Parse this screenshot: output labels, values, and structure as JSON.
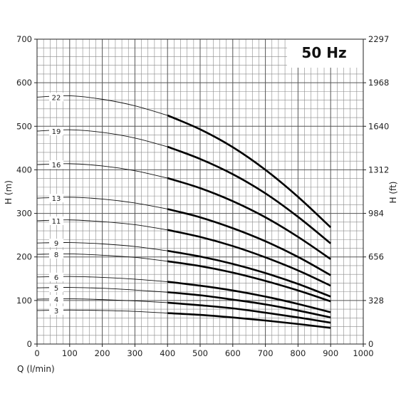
{
  "chart_data": {
    "type": "line",
    "title": "",
    "badge": "50 Hz",
    "xlabel": "Q (l/min)",
    "ylabel": "H (m)",
    "y2label": "H (ft)",
    "xlim": [
      0,
      1000
    ],
    "ylim": [
      0,
      700
    ],
    "x_ticks": [
      "0",
      "100",
      "200",
      "300",
      "400",
      "500",
      "600",
      "700",
      "800",
      "900",
      "1000"
    ],
    "y_ticks": [
      "0",
      "100",
      "200",
      "300",
      "400",
      "500",
      "600",
      "700"
    ],
    "y2_ticks": [
      "0",
      "328",
      "656",
      "984",
      "1312",
      "1640",
      "1968",
      "2297"
    ],
    "grid": true,
    "operating_range": [
      400,
      900
    ],
    "series": [
      {
        "name": "22",
        "x": [
          0,
          100,
          200,
          300,
          400,
          500,
          600,
          700,
          800,
          900
        ],
        "y": [
          567,
          570,
          562,
          547,
          525,
          493,
          452,
          400,
          338,
          268
        ]
      },
      {
        "name": "19",
        "x": [
          0,
          100,
          200,
          300,
          400,
          500,
          600,
          700,
          800,
          900
        ],
        "y": [
          489,
          492,
          486,
          473,
          453,
          425,
          390,
          346,
          292,
          231
        ]
      },
      {
        "name": "16",
        "x": [
          0,
          100,
          200,
          300,
          400,
          500,
          600,
          700,
          800,
          900
        ],
        "y": [
          412,
          414,
          409,
          398,
          381,
          358,
          328,
          291,
          246,
          195
        ]
      },
      {
        "name": "13",
        "x": [
          0,
          100,
          200,
          300,
          400,
          500,
          600,
          700,
          800,
          900
        ],
        "y": [
          335,
          337,
          333,
          324,
          310,
          291,
          266,
          236,
          200,
          158
        ]
      },
      {
        "name": "11",
        "x": [
          0,
          100,
          200,
          300,
          400,
          500,
          600,
          700,
          800,
          900
        ],
        "y": [
          283,
          285,
          281,
          274,
          262,
          246,
          225,
          199,
          169,
          134
        ]
      },
      {
        "name": "9",
        "x": [
          0,
          100,
          200,
          300,
          400,
          500,
          600,
          700,
          800,
          900
        ],
        "y": [
          232,
          233,
          230,
          224,
          214,
          201,
          184,
          163,
          138,
          109
        ]
      },
      {
        "name": "8",
        "x": [
          0,
          100,
          200,
          300,
          400,
          500,
          600,
          700,
          800,
          900
        ],
        "y": [
          206,
          207,
          204,
          199,
          190,
          179,
          164,
          145,
          123,
          98
        ]
      },
      {
        "name": "6",
        "x": [
          0,
          100,
          200,
          300,
          400,
          500,
          600,
          700,
          800,
          900
        ],
        "y": [
          154,
          155,
          153,
          149,
          143,
          134,
          123,
          109,
          92,
          73
        ]
      },
      {
        "name": "5",
        "x": [
          0,
          100,
          200,
          300,
          400,
          500,
          600,
          700,
          800,
          900
        ],
        "y": [
          129,
          130,
          128,
          124,
          119,
          112,
          102,
          91,
          77,
          61
        ]
      },
      {
        "name": "4",
        "x": [
          0,
          100,
          200,
          300,
          400,
          500,
          600,
          700,
          800,
          900
        ],
        "y": [
          103,
          104,
          102,
          99,
          95,
          89,
          82,
          72,
          61,
          49
        ]
      },
      {
        "name": "3",
        "x": [
          0,
          100,
          200,
          300,
          400,
          500,
          600,
          700,
          800,
          900
        ],
        "y": [
          77,
          78,
          77,
          75,
          71,
          67,
          61,
          54,
          46,
          37
        ]
      }
    ]
  }
}
